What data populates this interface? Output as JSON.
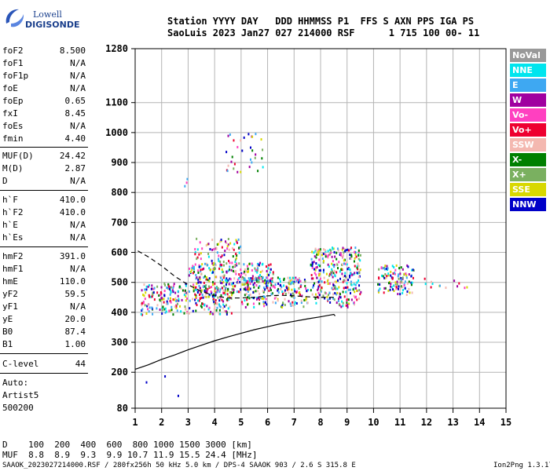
{
  "logo": {
    "line1": "Lowell",
    "line2": "DIGISONDE"
  },
  "header": {
    "row1": "Station YYYY DAY   DDD HHMMSS P1  FFS S AXN PPS IGA PS",
    "row2": "SaoLuis 2023 Jan27 027 214000 RSF      1 715 100 00- 11"
  },
  "params": [
    {
      "name": "foF2",
      "value": "8.500"
    },
    {
      "name": "foF1",
      "value": "N/A"
    },
    {
      "name": "foF1p",
      "value": "N/A"
    },
    {
      "name": "foE",
      "value": "N/A"
    },
    {
      "name": "foEp",
      "value": "0.65"
    },
    {
      "name": "fxI",
      "value": "8.45"
    },
    {
      "name": "foEs",
      "value": "N/A"
    },
    {
      "name": "fmin",
      "value": "4.40"
    },
    {
      "name": "MUF(D)",
      "value": "24.42"
    },
    {
      "name": "M(D)",
      "value": "2.87"
    },
    {
      "name": "D",
      "value": "N/A"
    },
    {
      "name": "h`F",
      "value": "410.0"
    },
    {
      "name": "h`F2",
      "value": "410.0"
    },
    {
      "name": "h`E",
      "value": "N/A"
    },
    {
      "name": "h`Es",
      "value": "N/A"
    },
    {
      "name": "hmF2",
      "value": "391.0"
    },
    {
      "name": "hmF1",
      "value": "N/A"
    },
    {
      "name": "hmE",
      "value": "110.0"
    },
    {
      "name": "yF2",
      "value": "59.5"
    },
    {
      "name": "yF1",
      "value": "N/A"
    },
    {
      "name": "yE",
      "value": "20.0"
    },
    {
      "name": "B0",
      "value": "87.4"
    },
    {
      "name": "B1",
      "value": "1.00"
    },
    {
      "name": "C-level",
      "value": "44"
    }
  ],
  "auto": {
    "line1": "Auto:",
    "line2": "Artist5",
    "line3": "500200"
  },
  "legend": [
    {
      "label": "NoVal",
      "color": "#999999"
    },
    {
      "label": "NNE",
      "color": "#00e5ee"
    },
    {
      "label": "E",
      "color": "#3ea8f2"
    },
    {
      "label": "W",
      "color": "#a000a0"
    },
    {
      "label": "Vo-",
      "color": "#ff40c0"
    },
    {
      "label": "Vo+",
      "color": "#ee0030"
    },
    {
      "label": "SSW",
      "color": "#f4b8b0"
    },
    {
      "label": "X-",
      "color": "#008000"
    },
    {
      "label": "X+",
      "color": "#7ab060"
    },
    {
      "label": "SSE",
      "color": "#d8d800"
    },
    {
      "label": "NNW",
      "color": "#0000c8"
    }
  ],
  "footer": {
    "row1": "D    100  200  400  600  800 1000 1500 3000 [km]",
    "row2": "MUF  8.8  8.9  9.3  9.9 10.7 11.9 15.5 24.4 [MHz]",
    "row3": "SAAOK_2023027214000.RSF / 280fx256h 50 kHz 5.0 km / DPS-4 SAAOK 903 / 2.6 S 315.8 E",
    "version": "Ion2Png 1.3.17"
  },
  "chart_data": {
    "type": "scatter",
    "xlabel": "",
    "ylabel": "",
    "xlim": [
      1,
      15
    ],
    "ylim": [
      80,
      1280
    ],
    "xticks": [
      "1",
      "2",
      "3",
      "4",
      "5",
      "6",
      "7",
      "8",
      "9",
      "10",
      "11",
      "12",
      "13",
      "14",
      "15"
    ],
    "yticks": [
      "80",
      "200",
      "300",
      "400",
      "500",
      "600",
      "700",
      "800",
      "900",
      "1000",
      "1100",
      "1280"
    ],
    "grid": true,
    "series": [
      {
        "name": "ionogram_traces",
        "clusters": [
          {
            "x": [
              1.2,
              4.7
            ],
            "y": [
              395,
              500
            ],
            "density": "high"
          },
          {
            "x": [
              3.0,
              6.2
            ],
            "y": [
              470,
              570
            ],
            "density": "high"
          },
          {
            "x": [
              3.2,
              5.0
            ],
            "y": [
              570,
              650
            ],
            "density": "medium"
          },
          {
            "x": [
              5.0,
              7.5
            ],
            "y": [
              420,
              520
            ],
            "density": "high"
          },
          {
            "x": [
              7.6,
              9.5
            ],
            "y": [
              420,
              620
            ],
            "density": "high"
          },
          {
            "x": [
              10.1,
              11.5
            ],
            "y": [
              460,
              560
            ],
            "density": "high"
          },
          {
            "x": [
              11.8,
              13.6
            ],
            "y": [
              480,
              520
            ],
            "density": "low"
          },
          {
            "x": [
              4.4,
              5.8
            ],
            "y": [
              870,
              1000
            ],
            "density": "low"
          },
          {
            "x": [
              2.8,
              3.0
            ],
            "y": [
              820,
              900
            ],
            "density": "low"
          }
        ]
      },
      {
        "name": "virtual_height_profile_dashed",
        "x": [
          1.1,
          1.5,
          2.0,
          2.5,
          3.0,
          3.5,
          4.0,
          4.5,
          5.0,
          5.5,
          6.0,
          6.5,
          7.0,
          7.5,
          8.0,
          8.5
        ],
        "y": [
          605,
          585,
          555,
          520,
          492,
          470,
          455,
          448,
          448,
          450,
          455,
          457,
          455,
          452,
          450,
          450
        ]
      },
      {
        "name": "true_height_profile_solid",
        "x": [
          1.0,
          1.5,
          2.0,
          2.5,
          3.0,
          3.5,
          4.0,
          4.5,
          5.0,
          5.5,
          6.0,
          6.5,
          7.0,
          7.5,
          8.0,
          8.3,
          8.5,
          8.55
        ],
        "y": [
          210,
          225,
          243,
          258,
          275,
          290,
          305,
          318,
          330,
          342,
          352,
          362,
          370,
          378,
          385,
          390,
          393,
          388
        ]
      }
    ]
  }
}
